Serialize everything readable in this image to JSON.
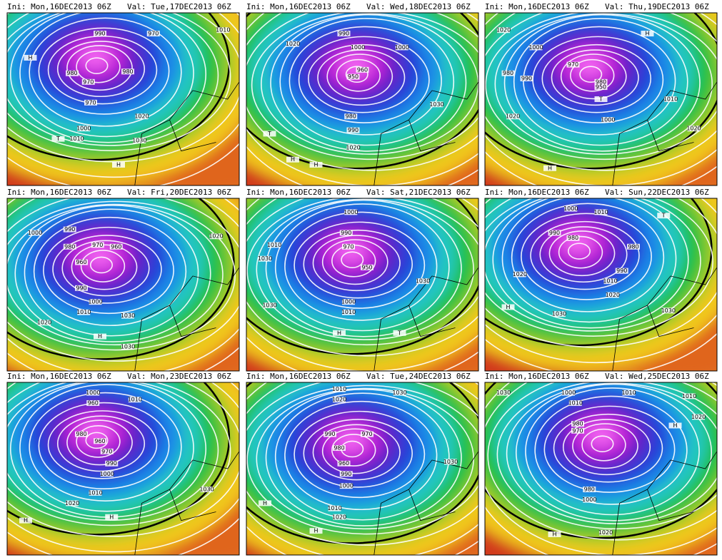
{
  "panels": [
    {
      "ini": "Ini: Mon,16DEC2013 06Z",
      "valid": "Val: Tue,17DEC2013 06Z",
      "labels": [
        "990",
        "970",
        "980",
        "970",
        "980",
        "970",
        "1000",
        "1010",
        "1020",
        "1030",
        "1010",
        "H",
        "H",
        "T"
      ]
    },
    {
      "ini": "Ini: Mon,16DEC2013 06Z",
      "valid": "Val: Wed,18DEC2013 06Z",
      "labels": [
        "1020",
        "990",
        "1000",
        "1000",
        "960",
        "950",
        "990",
        "980",
        "1020",
        "1030",
        "H",
        "H",
        "T"
      ]
    },
    {
      "ini": "Ini: Mon,16DEC2013 06Z",
      "valid": "Val: Thu,19DEC2013 06Z",
      "labels": [
        "1020",
        "1000",
        "990",
        "970",
        "980",
        "980",
        "950",
        "1010",
        "1000",
        "1020",
        "1020",
        "H",
        "H",
        "T"
      ]
    },
    {
      "ini": "Ini: Mon,16DEC2013 06Z",
      "valid": "Val: Fri,20DEC2013 06Z",
      "labels": [
        "1000",
        "990",
        "980",
        "970",
        "960",
        "960",
        "990",
        "1000",
        "1010",
        "1020",
        "1030",
        "1030",
        "1020",
        "H"
      ]
    },
    {
      "ini": "Ini: Mon,16DEC2013 06Z",
      "valid": "Val: Sat,21DEC2013 06Z",
      "labels": [
        "1000",
        "990",
        "970",
        "950",
        "1010",
        "1030",
        "1000",
        "1010",
        "1030",
        "1030",
        "T",
        "H"
      ]
    },
    {
      "ini": "Ini: Mon,16DEC2013 06Z",
      "valid": "Val: Sun,22DEC2013 06Z",
      "labels": [
        "1000",
        "1010",
        "990",
        "980",
        "980",
        "990",
        "1010",
        "1020",
        "1030",
        "1030",
        "1020",
        "H",
        "T"
      ]
    },
    {
      "ini": "Ini: Mon,16DEC2013 06Z",
      "valid": "Val: Mon,23DEC2013 06Z",
      "labels": [
        "1000",
        "960",
        "1010",
        "980",
        "960",
        "970",
        "990",
        "1000",
        "1010",
        "1020",
        "1030",
        "H",
        "H"
      ]
    },
    {
      "ini": "Ini: Mon,16DEC2013 06Z",
      "valid": "Val: Tue,24DEC2013 06Z",
      "labels": [
        "1020",
        "1010",
        "1030",
        "990",
        "980",
        "970",
        "960",
        "990",
        "1000",
        "1010",
        "1020",
        "1030",
        "H",
        "H"
      ]
    },
    {
      "ini": "Ini: Mon,16DEC2013 06Z",
      "valid": "Val: Wed,25DEC2013 06Z",
      "labels": [
        "1030",
        "1000",
        "1010",
        "980",
        "970",
        "1010",
        "1010",
        "1020",
        "980",
        "1000",
        "1020",
        "H",
        "H"
      ]
    }
  ]
}
